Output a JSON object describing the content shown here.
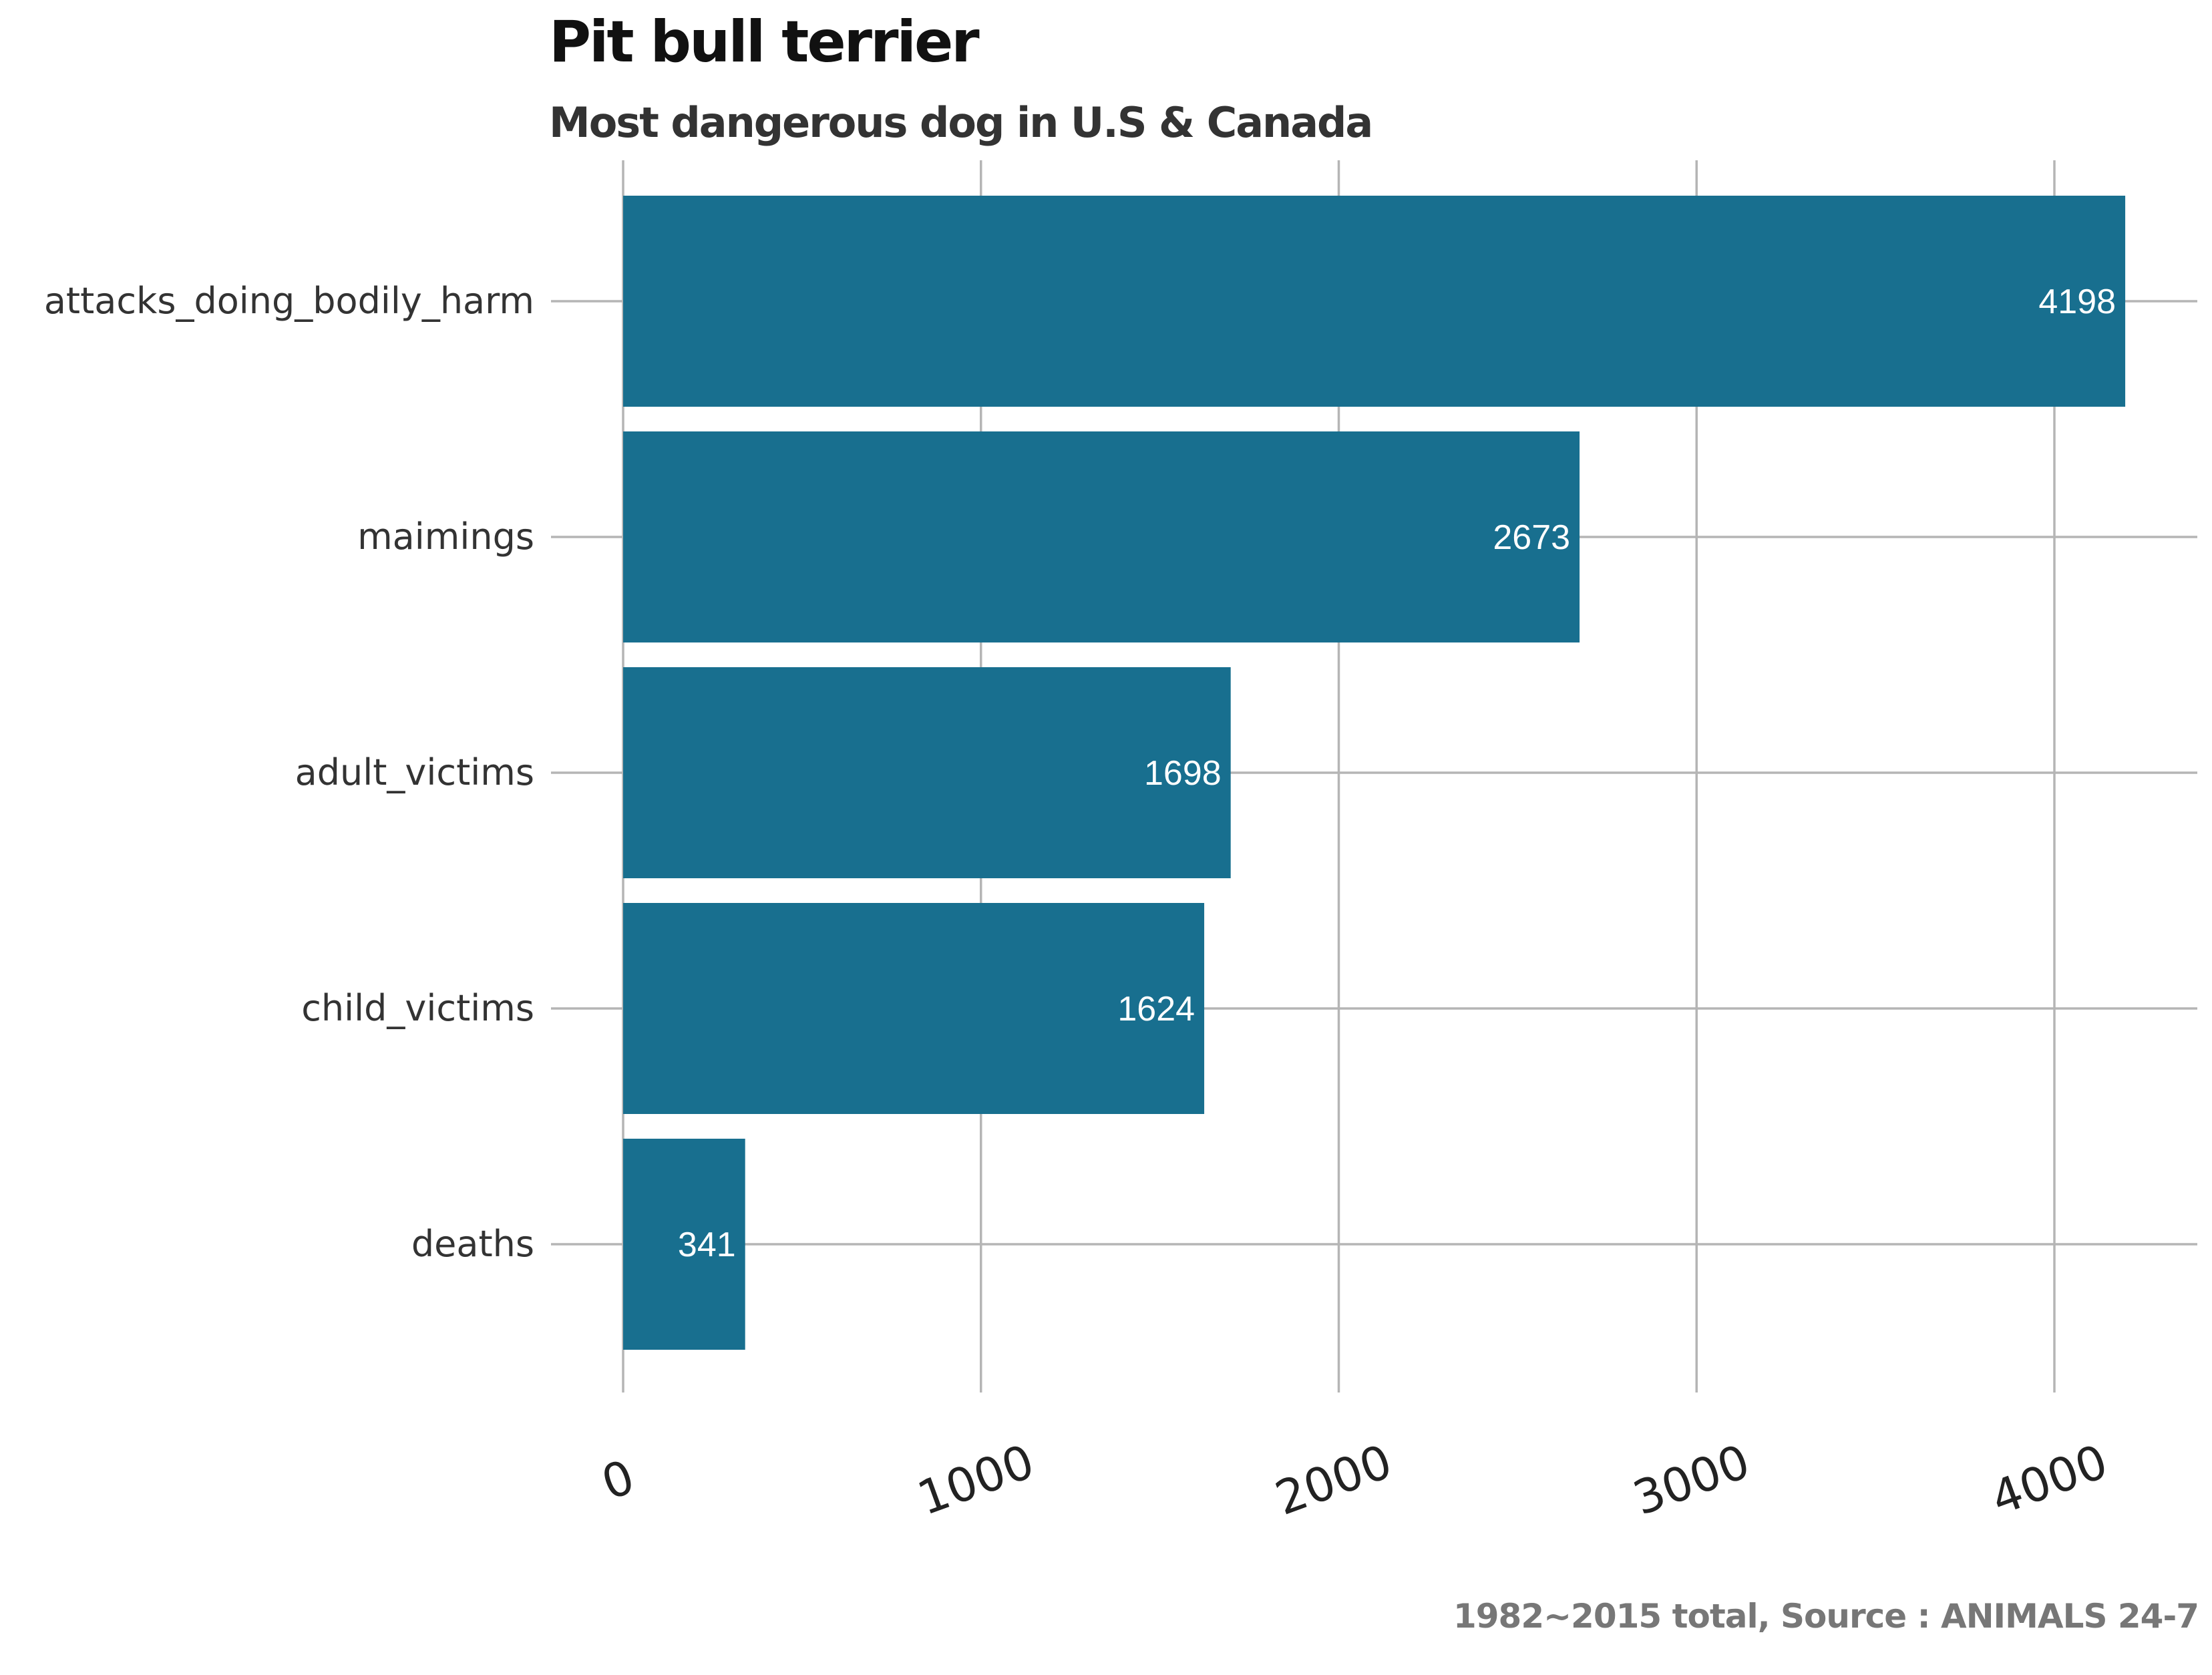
{
  "chart_data": {
    "type": "bar",
    "orientation": "horizontal",
    "title": "Pit bull terrier",
    "subtitle": "Most dangerous dog in U.S & Canada",
    "caption": "1982~2015 total, Source : ANIMALS 24-7",
    "categories": [
      "attacks_doing_bodily_harm",
      "maimings",
      "adult_victims",
      "child_victims",
      "deaths"
    ],
    "values": [
      4198,
      2673,
      1698,
      1624,
      341
    ],
    "xlim": [
      0,
      4400
    ],
    "x_ticks": [
      "0",
      "1000",
      "2000",
      "3000",
      "4000"
    ],
    "grid": true,
    "legend": "none",
    "colors": {
      "bar": "#186F8F",
      "grid": "#B5B5B5",
      "label": "#FFFFFF"
    }
  }
}
